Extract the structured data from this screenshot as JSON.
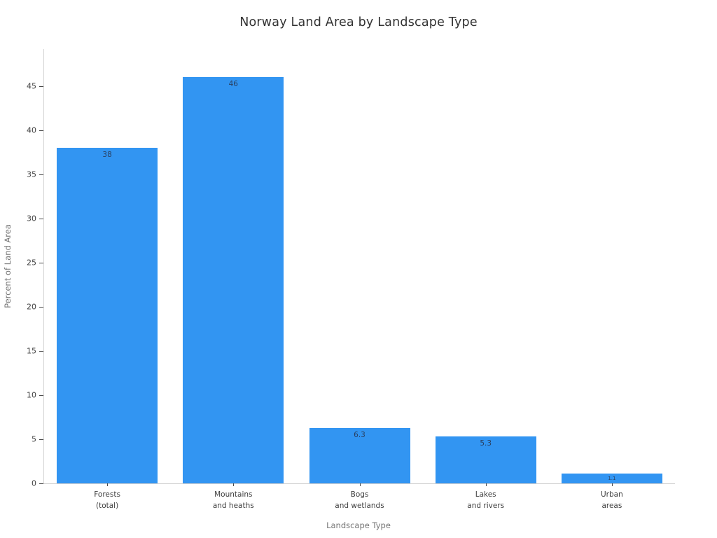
{
  "chart_data": {
    "type": "bar",
    "title": "Norway Land Area by Landscape Type",
    "xlabel": "Landscape Type",
    "ylabel": "Percent of Land Area",
    "categories": [
      "Forests\n(total)",
      "Mountains\nand heaths",
      "Bogs\nand wetlands",
      "Lakes\nand rivers",
      "Urban\nareas"
    ],
    "values": [
      38,
      46,
      6.3,
      5.3,
      1.1
    ],
    "value_labels": [
      "38",
      "46",
      "6.3",
      "5.3",
      "1.1"
    ],
    "yticks": [
      0,
      5,
      10,
      15,
      20,
      25,
      30,
      35,
      40,
      45
    ],
    "ylim": [
      0,
      49.2
    ],
    "grid": false,
    "legend": false,
    "bar_color": "#3295f2",
    "value_label_color": "#2a3f5f"
  }
}
